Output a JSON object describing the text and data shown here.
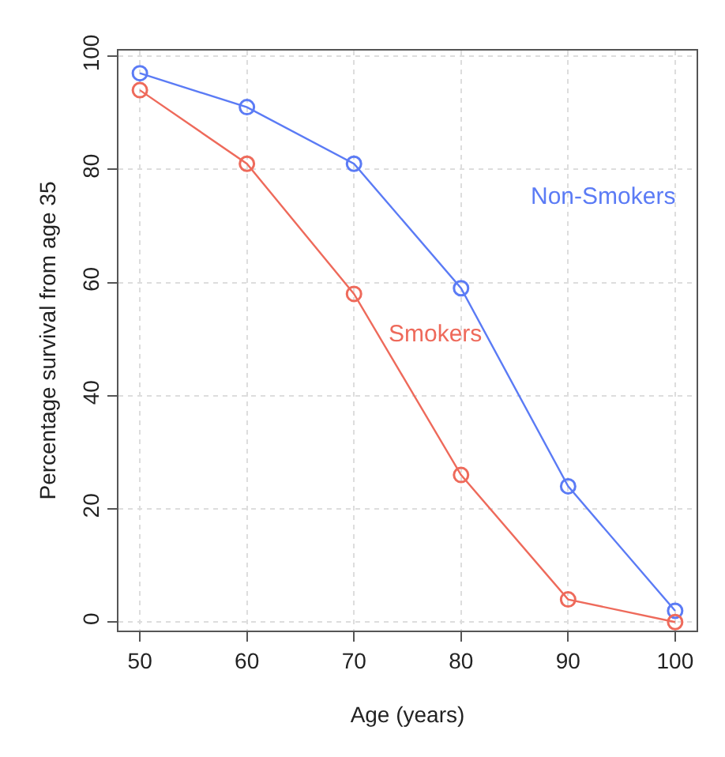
{
  "chart_data": {
    "type": "line",
    "xlabel": "Age (years)",
    "ylabel": "Percentage survival from age 35",
    "x": [
      50,
      60,
      70,
      80,
      90,
      100
    ],
    "series": [
      {
        "name": "Non-Smokers",
        "color": "#5b7bf5",
        "values": [
          97,
          91,
          81,
          59,
          24,
          2
        ]
      },
      {
        "name": "Smokers",
        "color": "#ee6a5b",
        "values": [
          94,
          81,
          58,
          26,
          4,
          0
        ]
      }
    ],
    "xlim": [
      48,
      102
    ],
    "ylim": [
      -1.5,
      101
    ],
    "xticks": [
      50,
      60,
      70,
      80,
      90,
      100
    ],
    "yticks": [
      0,
      20,
      40,
      60,
      80,
      100
    ],
    "grid": true,
    "marker": "circle",
    "line_style": "solid",
    "legend": false
  }
}
